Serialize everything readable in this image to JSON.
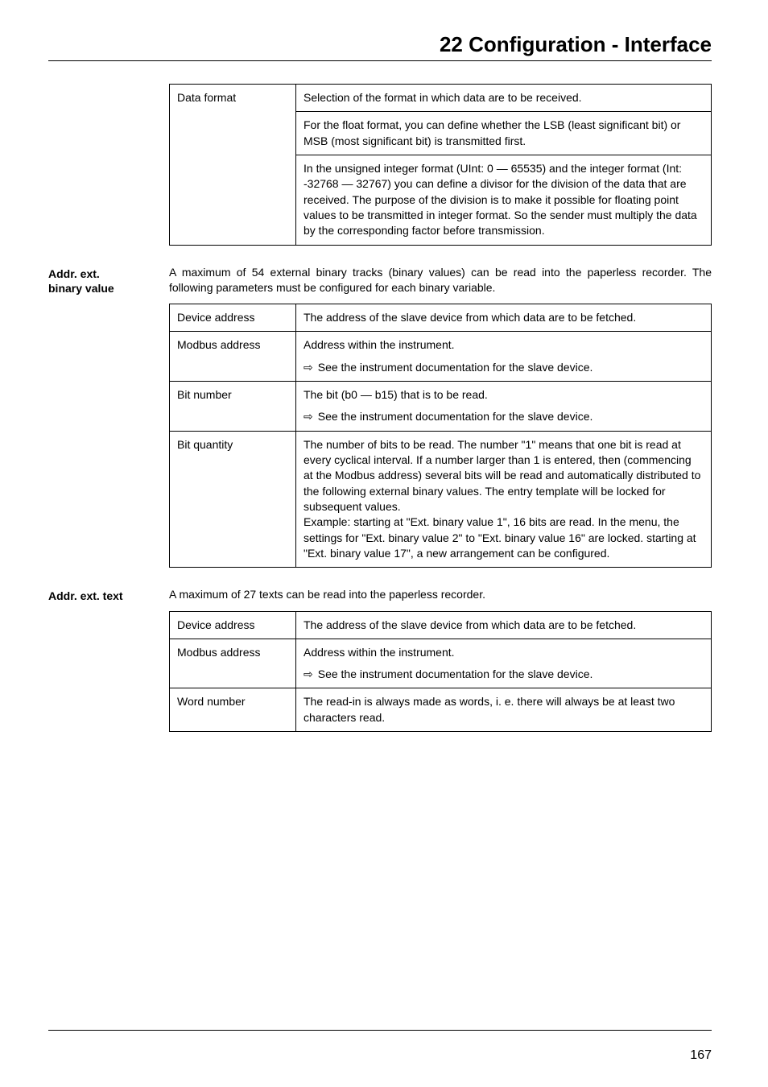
{
  "header": {
    "title": "22 Configuration - Interface"
  },
  "table1": {
    "row1_label": "Data format",
    "row1_p1": "Selection of the format in which data are to be received.",
    "row1_p2": "For the float format, you can define whether the LSB (least significant bit) or MSB (most significant bit) is transmitted first.",
    "row1_p3": "In the unsigned integer format (UInt: 0 — 65535) and the integer format (Int: -32768 — 32767) you can define a divisor for the division of the data that are received. The purpose of the division is to make it possible for floating point values to be transmitted in integer format. So the sender must multiply the data by the corresponding factor before transmission."
  },
  "section2": {
    "side_label_l1": "Addr. ext.",
    "side_label_l2": "binary value",
    "intro": "A maximum of 54 external binary tracks (binary values) can be read into the paperless recorder. The following parameters must be configured for each binary variable."
  },
  "table2": {
    "r1_label": "Device address",
    "r1_text": "The address of the slave device from which data are to be fetched.",
    "r2_label": "Modbus address",
    "r2_p1": "Address within the instrument.",
    "r2_arrow": "⇨",
    "r2_p2": "See the instrument documentation for the slave device.",
    "r3_label": "Bit number",
    "r3_p1": "The bit (b0 — b15) that is to be read.",
    "r3_arrow": "⇨",
    "r3_p2": "See the instrument documentation for the slave device.",
    "r4_label": "Bit quantity",
    "r4_text": "The number of bits to be read. The number \"1\" means that one bit is read at every cyclical interval. If a number larger than 1 is entered, then (commencing at the Modbus address) several bits will be read and automatically distributed to the following external binary values. The entry template will be locked for subsequent values.\nExample: starting at \"Ext. binary value 1\", 16 bits are read. In the menu, the settings for \"Ext. binary value 2\" to \"Ext. binary value 16\" are locked. starting at \"Ext. binary value 17\", a new arrangement can be configured."
  },
  "section3": {
    "side_label": "Addr. ext. text",
    "intro": "A maximum of 27 texts can be read into the paperless recorder."
  },
  "table3": {
    "r1_label": "Device address",
    "r1_text": "The address of the slave device from which data are to be fetched.",
    "r2_label": "Modbus address",
    "r2_p1": "Address within the instrument.",
    "r2_arrow": "⇨",
    "r2_p2": "See the instrument documentation for the slave device.",
    "r3_label": "Word number",
    "r3_text": "The read-in is always made as words, i. e. there will always be at least two characters read."
  },
  "footer": {
    "page_number": "167"
  }
}
